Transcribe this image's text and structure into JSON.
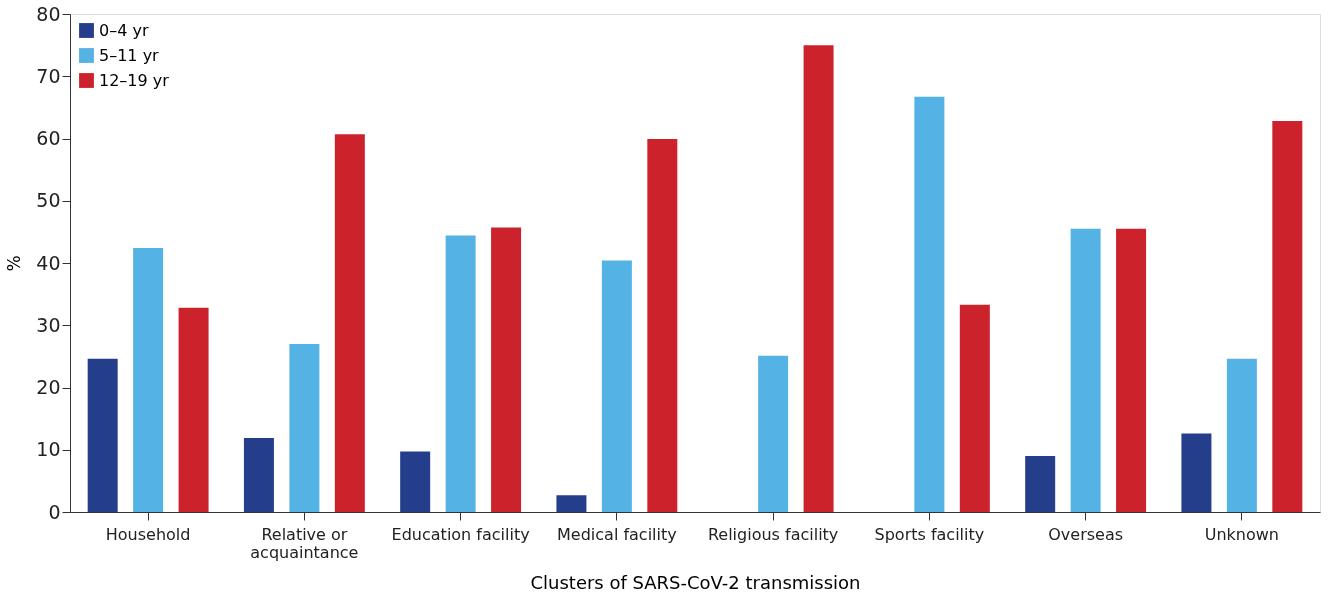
{
  "chart_data": {
    "type": "bar",
    "xlabel": "Clusters of SARS-CoV-2 transmission",
    "ylabel": "%",
    "categories": [
      "Household",
      "Relative or\nacquaintance",
      "Education facility",
      "Medical facility",
      "Religious facility",
      "Sports facility",
      "Overseas",
      "Unknown"
    ],
    "series": [
      {
        "name": "0–4 yr",
        "color": "#243e8c",
        "values": [
          24.6,
          11.9,
          9.7,
          2.7,
          0,
          0,
          9.0,
          12.6
        ]
      },
      {
        "name": "5–11 yr",
        "color": "#55b2e4",
        "values": [
          42.4,
          27.0,
          44.4,
          40.4,
          25.1,
          66.7,
          45.5,
          24.6
        ]
      },
      {
        "name": "12–19 yr",
        "color": "#cb222b",
        "values": [
          32.8,
          60.7,
          45.7,
          59.9,
          75.0,
          33.3,
          45.5,
          62.8
        ]
      }
    ],
    "ylim": [
      0,
      80
    ],
    "yticks": [
      0,
      10,
      20,
      30,
      40,
      50,
      60,
      70,
      80
    ],
    "grid": false,
    "legend": "top left"
  }
}
